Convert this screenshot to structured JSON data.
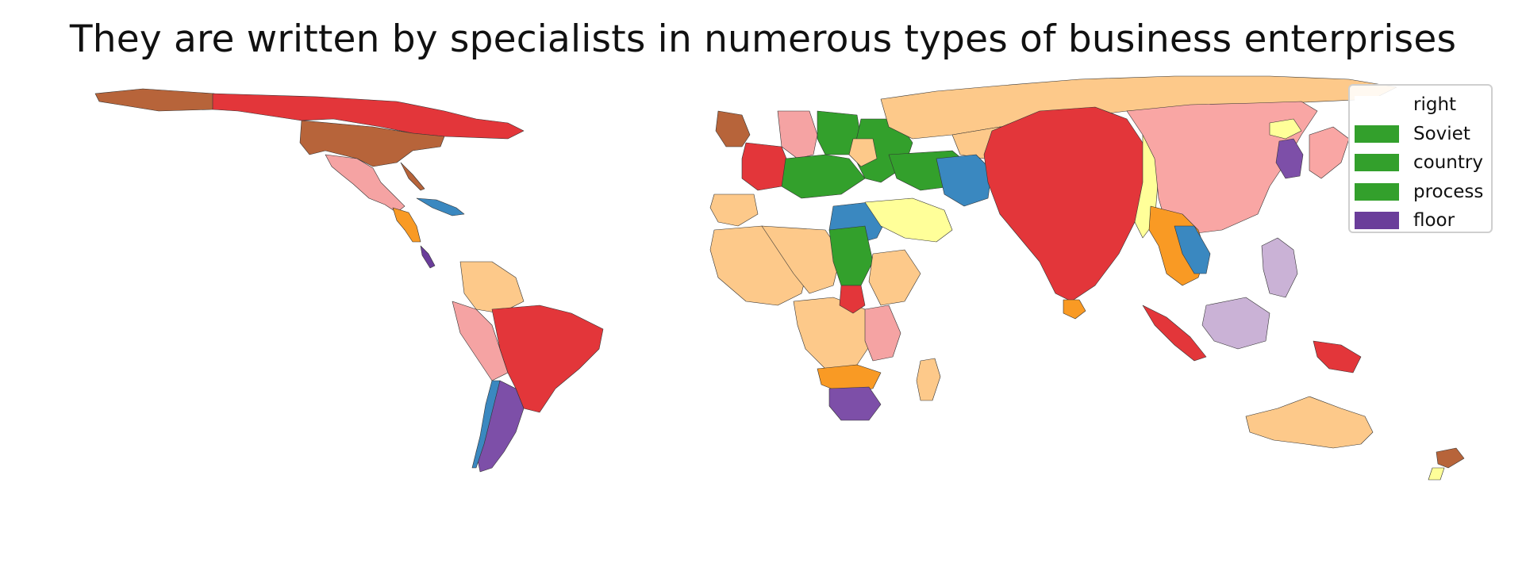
{
  "title": "They are written by specialists in numerous types of business enterprises",
  "legend": {
    "items": [
      {
        "label": "right",
        "color": "#ffffff"
      },
      {
        "label": "Soviet",
        "color": "#33a02c"
      },
      {
        "label": "country",
        "color": "#33a02c"
      },
      {
        "label": "process",
        "color": "#33a02c"
      },
      {
        "label": "floor",
        "color": "#6a3d9a"
      }
    ]
  },
  "colors": {
    "red": "#e41a1c",
    "pink": "#fb9a99",
    "light_orange": "#fdbf6f",
    "orange": "#ff7f00",
    "brown": "#b15928",
    "green": "#33a02c",
    "light_green": "#b2df8a",
    "blue": "#1f78b4",
    "yellow": "#ffff99",
    "purple": "#6a3d9a",
    "lavender": "#cab2d6"
  }
}
